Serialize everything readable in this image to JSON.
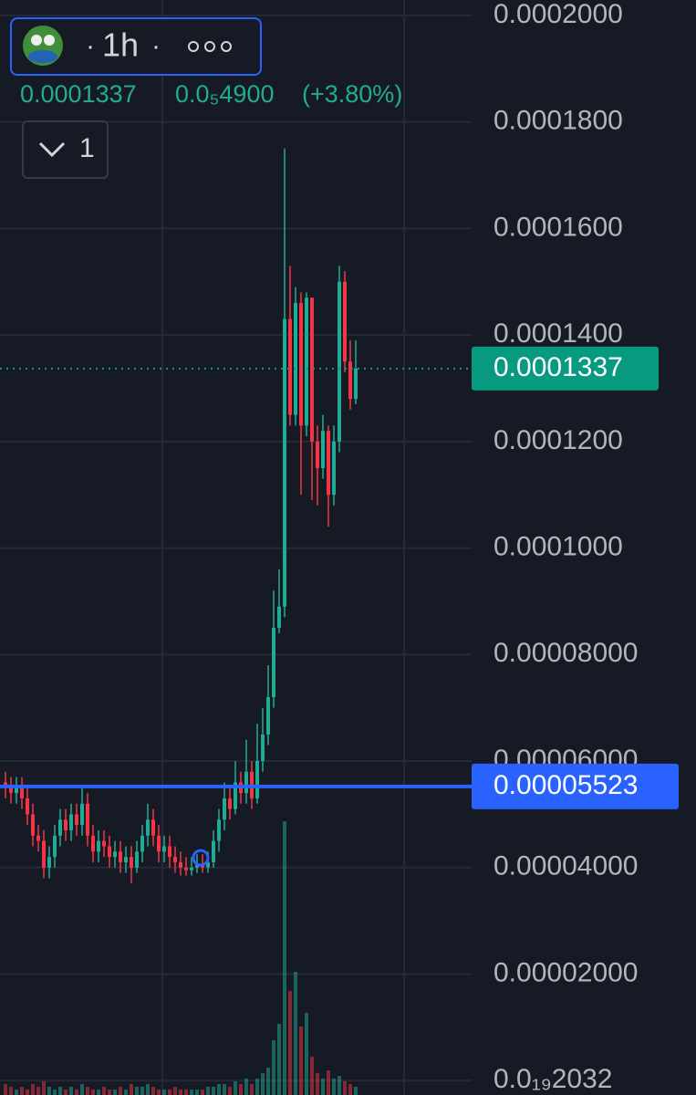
{
  "header": {
    "interval": "1h",
    "price": "0.0001337",
    "change": "0.0₅4900",
    "change_pct": "(+3.80%)",
    "indicator_count": "1"
  },
  "chart_data": {
    "type": "candlestick",
    "up_color": "#22ab94",
    "down_color": "#f23645",
    "grid": true,
    "ylim": [
      -2.7e-06,
      0.0002029
    ],
    "yticks": [
      {
        "value": 0.0002,
        "label": "0.0002000"
      },
      {
        "value": 0.00018,
        "label": "0.0001800"
      },
      {
        "value": 0.00016,
        "label": "0.0001600"
      },
      {
        "value": 0.00014,
        "label": "0.0001400"
      },
      {
        "value": 0.00012,
        "label": "0.0001200"
      },
      {
        "value": 0.0001,
        "label": "0.0001000"
      },
      {
        "value": 8e-05,
        "label": "0.00008000"
      },
      {
        "value": 6e-05,
        "label": "0.00006000"
      },
      {
        "value": 4e-05,
        "label": "0.00004000"
      },
      {
        "value": 2e-05,
        "label": "0.00002000"
      },
      {
        "value": 2.032e-23,
        "label": "0.0₁₉2032"
      }
    ],
    "open": [
      5.6e-05,
      5.5e-05,
      5.4e-05,
      5.5e-05,
      5.3e-05,
      5e-05,
      4.6e-05,
      4.5e-05,
      4e-05,
      4.2e-05,
      4.6e-05,
      4.9e-05,
      4.7e-05,
      5e-05,
      4.8e-05,
      5.2e-05,
      4.6e-05,
      4.3e-05,
      4.5e-05,
      4.4e-05,
      4.2e-05,
      4.3e-05,
      4.1e-05,
      4.2e-05,
      4e-05,
      4.3e-05,
      4.6e-05,
      4.9e-05,
      4.6e-05,
      4.3e-05,
      4.4e-05,
      4.2e-05,
      4.1e-05,
      4e-05,
      3.95e-05,
      4e-05,
      4.05e-05,
      4e-05,
      4.1e-05,
      4.5e-05,
      4.9e-05,
      5.3e-05,
      5.1e-05,
      5.6e-05,
      5.4e-05,
      5.8e-05,
      5.3e-05,
      6e-05,
      6.5e-05,
      7.2e-05,
      8.5e-05,
      8.9e-05,
      0.000143,
      0.000125,
      0.000146,
      0.000123,
      0.000147,
      0.00012,
      0.000115,
      0.000122,
      0.00011,
      0.00012,
      0.00015,
      0.000135,
      0.000128
    ],
    "high": [
      5.8e-05,
      5.7e-05,
      5.7e-05,
      5.7e-05,
      5.5e-05,
      5.2e-05,
      4.8e-05,
      4.7e-05,
      4.4e-05,
      4.8e-05,
      5.1e-05,
      5.1e-05,
      5.2e-05,
      5.2e-05,
      5.5e-05,
      5.4e-05,
      4.8e-05,
      4.7e-05,
      4.7e-05,
      4.6e-05,
      4.5e-05,
      4.5e-05,
      4.4e-05,
      4.4e-05,
      4.5e-05,
      4.8e-05,
      5.2e-05,
      5.1e-05,
      4.8e-05,
      4.6e-05,
      4.6e-05,
      4.4e-05,
      4.3e-05,
      4.2e-05,
      4.2e-05,
      4.25e-05,
      4.25e-05,
      4.3e-05,
      4.7e-05,
      5.1e-05,
      5.6e-05,
      5.5e-05,
      6e-05,
      5.8e-05,
      6.4e-05,
      6e-05,
      6.7e-05,
      7e-05,
      7.8e-05,
      9.2e-05,
      9.6e-05,
      0.000175,
      0.000153,
      0.000149,
      0.000148,
      0.000148,
      0.000147,
      0.000123,
      0.000125,
      0.000123,
      0.000123,
      0.000153,
      0.000152,
      0.000139,
      0.000139
    ],
    "low": [
      5.3e-05,
      5.2e-05,
      5.2e-05,
      5.1e-05,
      4.8e-05,
      4.4e-05,
      4.3e-05,
      3.8e-05,
      3.8e-05,
      4e-05,
      4.4e-05,
      4.5e-05,
      4.5e-05,
      4.6e-05,
      4.6e-05,
      4.4e-05,
      4.1e-05,
      4.1e-05,
      4.2e-05,
      4e-05,
      4e-05,
      3.9e-05,
      3.9e-05,
      3.7e-05,
      3.9e-05,
      4.1e-05,
      4.4e-05,
      4.4e-05,
      4.1e-05,
      4.1e-05,
      4e-05,
      3.9e-05,
      3.85e-05,
      3.85e-05,
      3.85e-05,
      3.9e-05,
      3.9e-05,
      3.9e-05,
      4e-05,
      4.3e-05,
      4.7e-05,
      4.9e-05,
      5e-05,
      5.2e-05,
      5.2e-05,
      5.1e-05,
      5.2e-05,
      5.8e-05,
      6.3e-05,
      7e-05,
      8.4e-05,
      8.7e-05,
      0.000123,
      0.000123,
      0.00011,
      0.000121,
      0.000109,
      0.000108,
      0.000113,
      0.000104,
      0.000108,
      0.000118,
      0.000133,
      0.000126,
      0.000127
    ],
    "close": [
      5.5e-05,
      5.4e-05,
      5.5e-05,
      5.3e-05,
      5e-05,
      4.6e-05,
      4.5e-05,
      4e-05,
      4.2e-05,
      4.6e-05,
      4.9e-05,
      4.7e-05,
      5e-05,
      4.8e-05,
      5.2e-05,
      4.6e-05,
      4.3e-05,
      4.5e-05,
      4.4e-05,
      4.2e-05,
      4.3e-05,
      4.1e-05,
      4.2e-05,
      4e-05,
      4.3e-05,
      4.6e-05,
      4.9e-05,
      4.6e-05,
      4.3e-05,
      4.4e-05,
      4.2e-05,
      4.1e-05,
      4e-05,
      3.95e-05,
      4e-05,
      4.05e-05,
      4e-05,
      4.1e-05,
      4.5e-05,
      4.9e-05,
      5.3e-05,
      5.1e-05,
      5.6e-05,
      5.4e-05,
      5.8e-05,
      5.3e-05,
      6e-05,
      6.5e-05,
      7.2e-05,
      8.5e-05,
      8.9e-05,
      0.000143,
      0.000125,
      0.000146,
      0.000123,
      0.000147,
      0.00012,
      0.000115,
      0.000122,
      0.00011,
      0.00012,
      0.00015,
      0.000135,
      0.000128,
      0.0001337
    ],
    "volume": [
      4,
      3,
      2,
      3,
      2,
      4,
      3,
      5,
      3,
      2,
      3,
      2,
      3,
      2,
      4,
      3,
      2,
      2,
      3,
      2,
      2,
      3,
      2,
      4,
      3,
      3,
      4,
      3,
      2,
      2,
      2,
      3,
      2,
      2,
      2,
      2,
      2,
      3,
      3,
      4,
      4,
      3,
      5,
      4,
      6,
      4,
      6,
      8,
      10,
      20,
      26,
      100,
      38,
      45,
      25,
      30,
      14,
      8,
      6,
      9,
      6,
      7,
      5,
      4,
      3
    ],
    "last_price": {
      "value": 0.0001337,
      "label": "0.0001337",
      "color": "#089981"
    },
    "hline": {
      "value": 5.523e-05,
      "label": "0.00005523",
      "color": "#2962ff"
    }
  }
}
